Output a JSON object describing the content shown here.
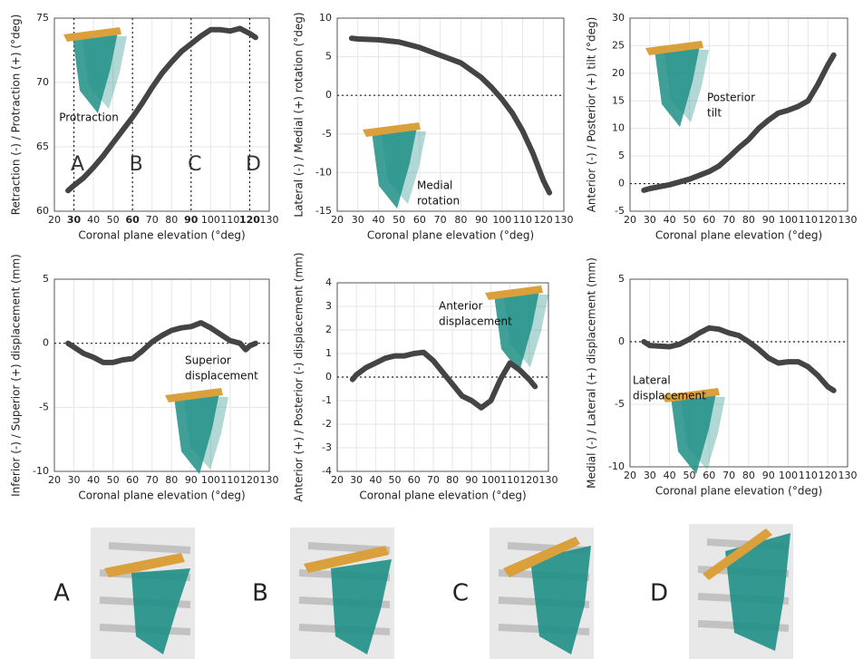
{
  "chart_data": [
    {
      "type": "line",
      "xlabel": "Coronal plane elevation (°deg)",
      "ylabel": "Retraction (-) / Protraction (+) (°deg)",
      "x": [
        27,
        30,
        35,
        40,
        45,
        50,
        55,
        60,
        65,
        70,
        75,
        80,
        85,
        90,
        95,
        100,
        105,
        110,
        115,
        120,
        123
      ],
      "values": [
        61.6,
        62,
        62.6,
        63.4,
        64.3,
        65.3,
        66.3,
        67.3,
        68.4,
        69.6,
        70.7,
        71.6,
        72.4,
        73,
        73.6,
        74.1,
        74.1,
        74,
        74.2,
        73.8,
        73.5
      ],
      "xlim": [
        20,
        130
      ],
      "xticks": [
        20,
        30,
        40,
        50,
        60,
        70,
        80,
        90,
        100,
        110,
        120,
        130
      ],
      "ylim": [
        60,
        75
      ],
      "yticks": [
        60,
        65,
        70,
        75
      ],
      "vlines": [
        30,
        60,
        90,
        120
      ],
      "vline_labels": [
        "A",
        "B",
        "C",
        "D"
      ],
      "annotation": [
        "Protraction"
      ],
      "color": "#444444",
      "grid": true
    },
    {
      "type": "line",
      "xlabel": "Coronal plane elevation (°deg)",
      "ylabel": "Lateral (-) / Medial (+) rotation (°deg)",
      "x": [
        27,
        30,
        40,
        50,
        60,
        70,
        80,
        90,
        95,
        100,
        105,
        110,
        115,
        120,
        123
      ],
      "values": [
        7.4,
        7.3,
        7.2,
        6.9,
        6.2,
        5.2,
        4.2,
        2.3,
        1,
        -0.5,
        -2.3,
        -4.6,
        -7.5,
        -11,
        -12.6
      ],
      "xlim": [
        20,
        130
      ],
      "xticks": [
        20,
        30,
        40,
        50,
        60,
        70,
        80,
        90,
        100,
        110,
        120,
        130
      ],
      "ylim": [
        -15,
        10
      ],
      "yticks": [
        -15,
        -10,
        -5,
        0,
        5,
        10
      ],
      "zero_line": true,
      "annotation": [
        "Medial",
        "rotation"
      ],
      "color": "#444444",
      "grid": true
    },
    {
      "type": "line",
      "xlabel": "Coronal plane elevation (°deg)",
      "ylabel": "Anterior (-) / Posterior (+) tilt (°deg)",
      "x": [
        27,
        30,
        40,
        50,
        60,
        65,
        70,
        75,
        80,
        85,
        90,
        95,
        100,
        105,
        110,
        115,
        120,
        123
      ],
      "values": [
        -1.2,
        -0.9,
        -0.2,
        0.8,
        2.2,
        3.2,
        4.8,
        6.5,
        8,
        10,
        11.5,
        12.8,
        13.3,
        14,
        15,
        18,
        21.5,
        23.3
      ],
      "xlim": [
        20,
        130
      ],
      "xticks": [
        20,
        30,
        40,
        50,
        60,
        70,
        80,
        90,
        100,
        110,
        120,
        130
      ],
      "ylim": [
        -5,
        30
      ],
      "yticks": [
        -5,
        0,
        5,
        10,
        15,
        20,
        25,
        30
      ],
      "zero_line": true,
      "annotation": [
        "Posterior",
        "tilt"
      ],
      "color": "#444444",
      "grid": true
    },
    {
      "type": "line",
      "xlabel": "Coronal plane elevation (°deg)",
      "ylabel": "Inferior (-) / Superior (+) displacement (mm)",
      "x": [
        27,
        30,
        35,
        40,
        45,
        50,
        55,
        60,
        65,
        70,
        75,
        80,
        85,
        90,
        95,
        100,
        105,
        110,
        115,
        118,
        120,
        123
      ],
      "values": [
        0,
        -0.3,
        -0.8,
        -1.1,
        -1.5,
        -1.5,
        -1.3,
        -1.2,
        -0.6,
        0.1,
        0.6,
        1,
        1.2,
        1.3,
        1.6,
        1.2,
        0.7,
        0.2,
        0,
        -0.5,
        -0.2,
        0
      ],
      "xlim": [
        20,
        130
      ],
      "xticks": [
        20,
        30,
        40,
        50,
        60,
        70,
        80,
        90,
        100,
        110,
        120,
        130
      ],
      "ylim": [
        -10,
        5
      ],
      "yticks": [
        -10,
        -5,
        0,
        5
      ],
      "zero_line": true,
      "annotation": [
        "Superior",
        "displacement"
      ],
      "color": "#444444",
      "grid": true
    },
    {
      "type": "line",
      "xlabel": "Coronal plane elevation (°deg)",
      "ylabel": "Anterior (+) / Posterior (-) displacement (mm)",
      "x": [
        28,
        30,
        35,
        40,
        45,
        50,
        55,
        60,
        65,
        70,
        75,
        80,
        85,
        90,
        95,
        100,
        105,
        110,
        115,
        120,
        123
      ],
      "values": [
        -0.1,
        0.1,
        0.4,
        0.6,
        0.8,
        0.9,
        0.9,
        1,
        1.05,
        0.7,
        0.2,
        -0.3,
        -0.8,
        -1,
        -1.3,
        -1,
        -0.1,
        0.6,
        0.3,
        -0.1,
        -0.4
      ],
      "xlim": [
        20,
        130
      ],
      "xticks": [
        20,
        30,
        40,
        50,
        60,
        70,
        80,
        90,
        100,
        110,
        120,
        130
      ],
      "ylim": [
        -4,
        4
      ],
      "yticks": [
        -4,
        -3,
        -2,
        -1,
        0,
        1,
        2,
        3,
        4
      ],
      "zero_line": true,
      "annotation": [
        "Anterior",
        "displacement"
      ],
      "color": "#444444",
      "grid": true
    },
    {
      "type": "line",
      "xlabel": "Coronal plane elevation (°deg)",
      "ylabel": "Medial (-) / Lateral (+) displacement (mm)",
      "x": [
        27,
        30,
        40,
        45,
        50,
        55,
        60,
        65,
        70,
        75,
        80,
        85,
        90,
        95,
        100,
        105,
        110,
        115,
        120,
        123
      ],
      "values": [
        0,
        -0.3,
        -0.4,
        -0.2,
        0.2,
        0.7,
        1.1,
        1,
        0.7,
        0.5,
        0,
        -0.6,
        -1.3,
        -1.7,
        -1.6,
        -1.6,
        -2,
        -2.7,
        -3.6,
        -3.9
      ],
      "xlim": [
        20,
        130
      ],
      "xticks": [
        20,
        30,
        40,
        50,
        60,
        70,
        80,
        90,
        100,
        110,
        120,
        130
      ],
      "ylim": [
        -10,
        5
      ],
      "yticks": [
        -10,
        -5,
        0,
        5
      ],
      "zero_line": true,
      "annotation": [
        "Lateral",
        "displacement"
      ],
      "color": "#444444",
      "grid": true
    }
  ],
  "panel_labels": [
    "A",
    "B",
    "C",
    "D"
  ]
}
